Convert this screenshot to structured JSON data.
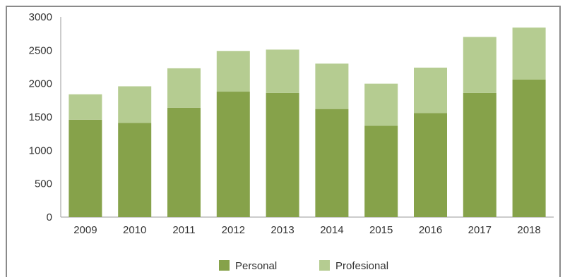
{
  "chart_data": {
    "type": "bar",
    "stacked": true,
    "title": "",
    "xlabel": "",
    "ylabel": "",
    "ylim": [
      0,
      3000
    ],
    "yticks": [
      0,
      500,
      1000,
      1500,
      2000,
      2500,
      3000
    ],
    "categories": [
      "2009",
      "2010",
      "2011",
      "2012",
      "2013",
      "2014",
      "2015",
      "2016",
      "2017",
      "2018"
    ],
    "series": [
      {
        "name": "Personal",
        "color": "#86a24a",
        "values": [
          1460,
          1410,
          1640,
          1880,
          1860,
          1620,
          1370,
          1560,
          1860,
          2060
        ]
      },
      {
        "name": "Profesional",
        "color": "#b5cc91",
        "values": [
          380,
          550,
          590,
          610,
          650,
          680,
          630,
          680,
          840,
          780
        ]
      }
    ],
    "grid": false,
    "legend_position": "bottom"
  }
}
